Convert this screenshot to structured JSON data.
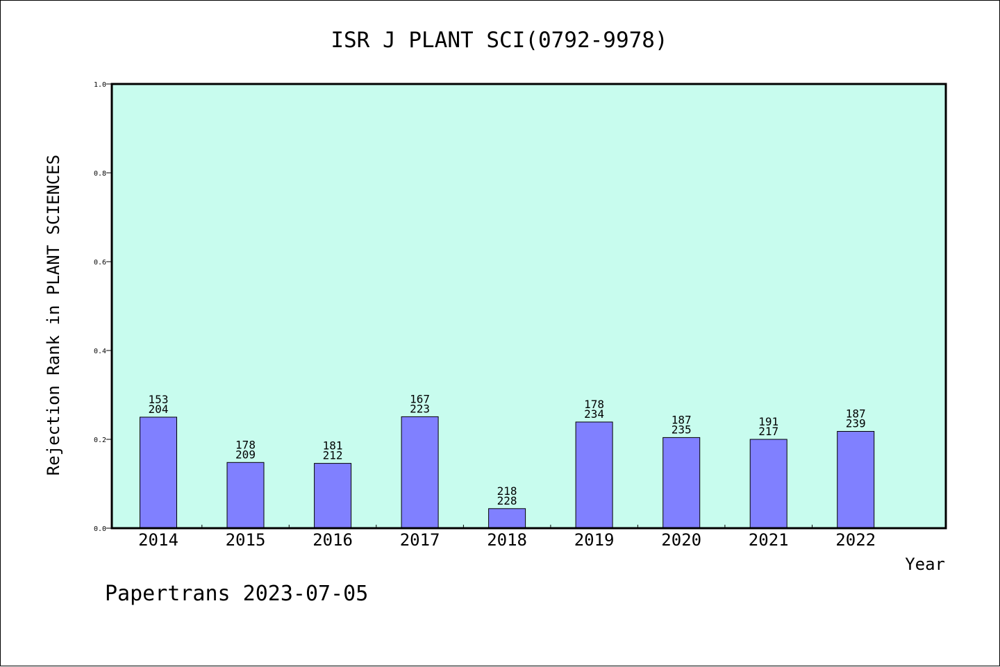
{
  "title": "ISR J PLANT SCI(0792-9978)",
  "footer": "Papertrans 2023-07-05",
  "colors": {
    "plot_background": "#c8fcee",
    "bar_fill": "#8080ff",
    "bar_stroke": "#000000",
    "axis": "#000000"
  },
  "chart_data": {
    "type": "bar",
    "title": "ISR J PLANT SCI(0792-9978)",
    "xlabel": "Year",
    "ylabel": "Rejection Rank in PLANT SCIENCES",
    "ylim": [
      0,
      1.0
    ],
    "yticks": [
      "0.0",
      "0.2",
      "0.4",
      "0.6",
      "0.8",
      "1.0"
    ],
    "categories": [
      "2014",
      "2015",
      "2016",
      "2017",
      "2018",
      "2019",
      "2020",
      "2021",
      "2022"
    ],
    "values": [
      0.25,
      0.148,
      0.146,
      0.251,
      0.044,
      0.239,
      0.204,
      0.2,
      0.218
    ],
    "labels_top": [
      "153",
      "178",
      "181",
      "167",
      "218",
      "178",
      "187",
      "191",
      "187"
    ],
    "labels_bottom": [
      "204",
      "209",
      "212",
      "223",
      "228",
      "234",
      "235",
      "217",
      "239"
    ],
    "grid": false,
    "legend": "none"
  }
}
